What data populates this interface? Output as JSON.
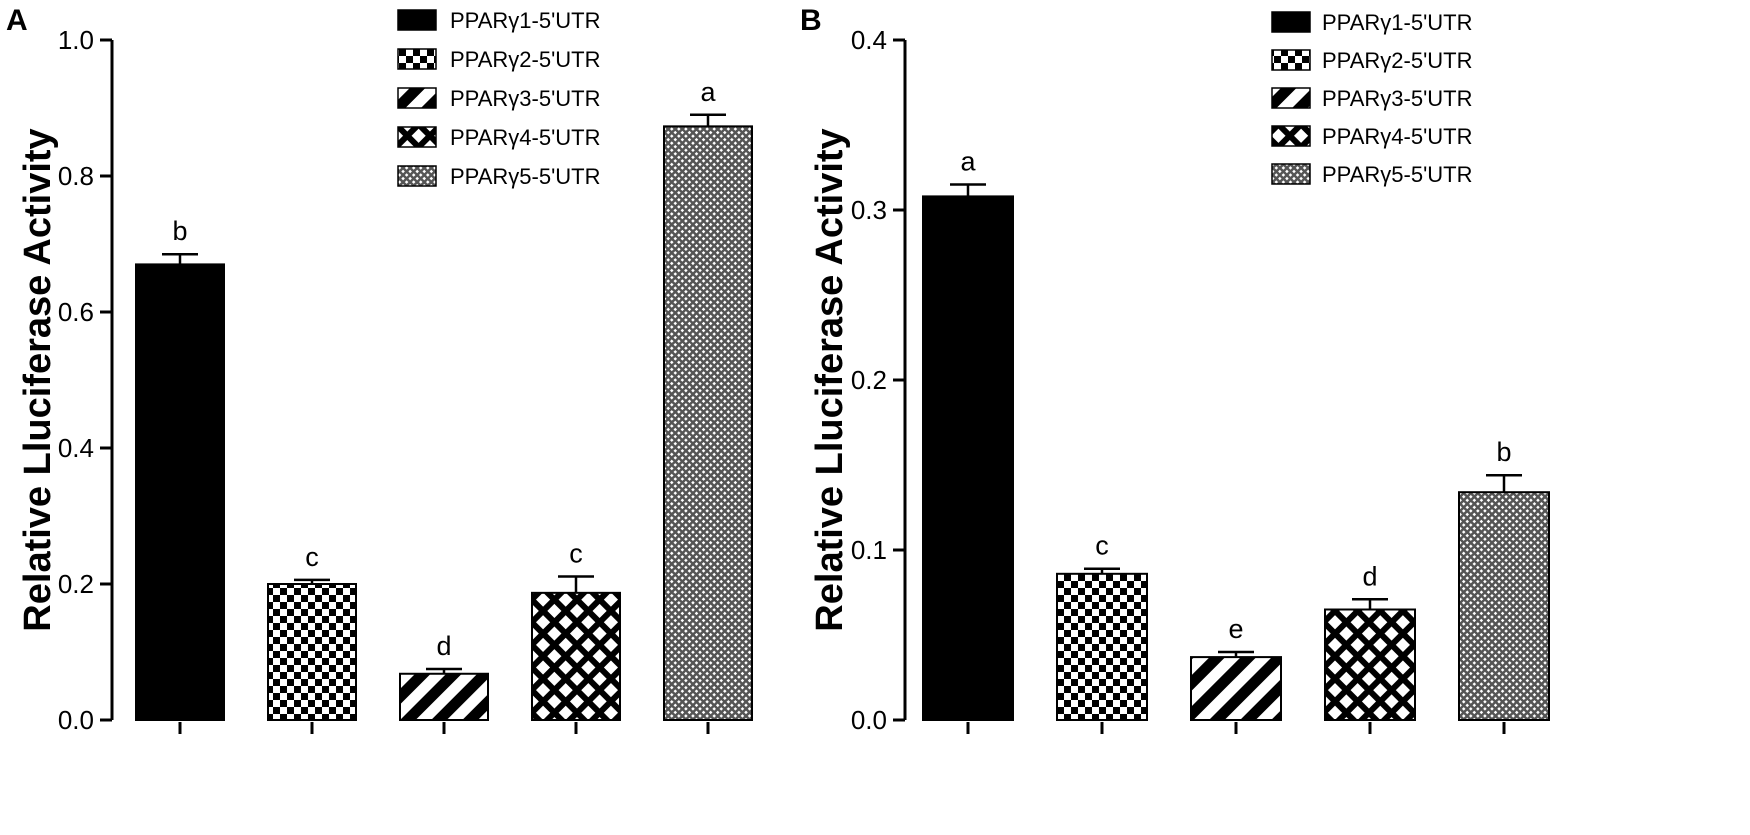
{
  "chart_data": [
    {
      "panel": "A",
      "type": "bar",
      "ylabel": "Relative Lluciferase Activity",
      "ylim": [
        0,
        1.0
      ],
      "yticks": [
        "0.0",
        "0.2",
        "0.4",
        "0.6",
        "0.8",
        "1.0"
      ],
      "series": [
        {
          "name": "PPARγ1-5'UTR",
          "value": 0.67,
          "error": 0.015,
          "sig": "b",
          "pattern": "solid"
        },
        {
          "name": "PPARγ2-5'UTR",
          "value": 0.2,
          "error": 0.006,
          "sig": "c",
          "pattern": "checker"
        },
        {
          "name": "PPARγ3-5'UTR",
          "value": 0.068,
          "error": 0.007,
          "sig": "d",
          "pattern": "diagonal"
        },
        {
          "name": "PPARγ4-5'UTR",
          "value": 0.187,
          "error": 0.024,
          "sig": "c",
          "pattern": "crosshatch"
        },
        {
          "name": "PPARγ5-5'UTR",
          "value": 0.873,
          "error": 0.017,
          "sig": "a",
          "pattern": "fine"
        }
      ]
    },
    {
      "panel": "B",
      "type": "bar",
      "ylabel": "Relative Lluciferase Activity",
      "ylim": [
        0,
        0.4
      ],
      "yticks": [
        "0.0",
        "0.1",
        "0.2",
        "0.3",
        "0.4"
      ],
      "series": [
        {
          "name": "PPARγ1-5'UTR",
          "value": 0.308,
          "error": 0.007,
          "sig": "a",
          "pattern": "solid"
        },
        {
          "name": "PPARγ2-5'UTR",
          "value": 0.086,
          "error": 0.003,
          "sig": "c",
          "pattern": "checker"
        },
        {
          "name": "PPARγ3-5'UTR",
          "value": 0.037,
          "error": 0.003,
          "sig": "e",
          "pattern": "diagonal"
        },
        {
          "name": "PPARγ4-5'UTR",
          "value": 0.065,
          "error": 0.006,
          "sig": "d",
          "pattern": "crosshatch"
        },
        {
          "name": "PPARγ5-5'UTR",
          "value": 0.134,
          "error": 0.01,
          "sig": "b",
          "pattern": "fine"
        }
      ]
    }
  ]
}
